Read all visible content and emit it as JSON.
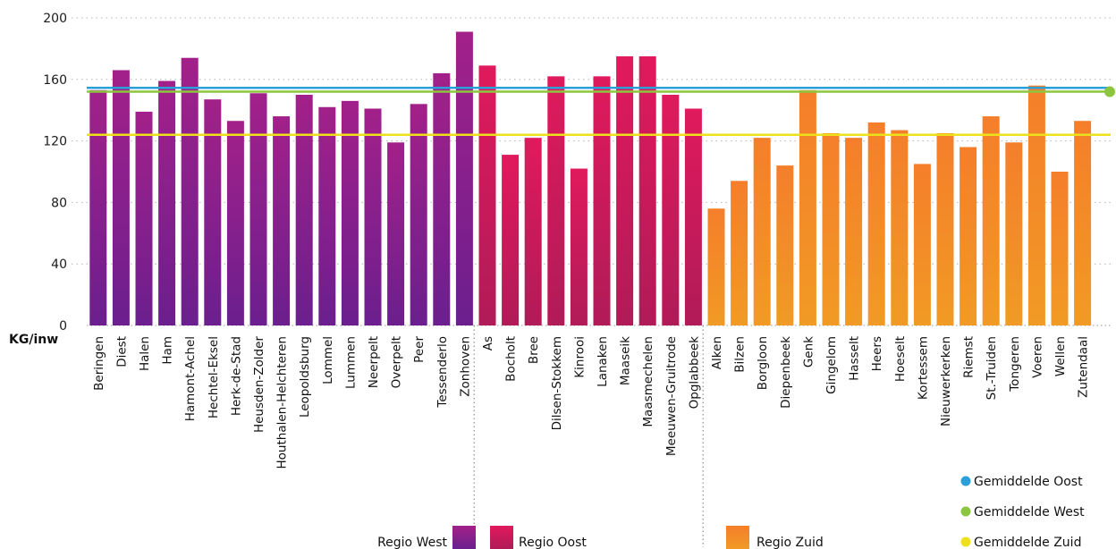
{
  "chart_data": {
    "type": "bar",
    "ylabel": "KG/inw",
    "ylim": [
      0,
      200
    ],
    "yticks": [
      0,
      40,
      80,
      120,
      160,
      200
    ],
    "grid": "dotted horizontal",
    "regions": [
      {
        "name": "Regio West",
        "color_top": "#a3208a",
        "color_bottom": "#6b1f8e",
        "categories": [
          "Beringen",
          "Diest",
          "Halen",
          "Ham",
          "Hamont-Achel",
          "Hechtel-Eksel",
          "Herk-de-Stad",
          "Heusden-Zolder",
          "Houthalen-Helchteren",
          "Leopoldsburg",
          "Lommel",
          "Lummen",
          "Neerpelt",
          "Overpelt",
          "Peer",
          "Tessenderlo",
          "Zonhoven"
        ],
        "values": [
          153,
          166,
          139,
          159,
          174,
          147,
          133,
          151,
          136,
          150,
          142,
          146,
          141,
          119,
          144,
          164,
          191
        ]
      },
      {
        "name": "Regio Oost",
        "color_top": "#e01a5c",
        "color_bottom": "#b01b58",
        "categories": [
          "As",
          "Bocholt",
          "Bree",
          "Dilsen-Stokkem",
          "Kinrooi",
          "Lanaken",
          "Maaseik",
          "Maasmechelen",
          "Meeuwen-Gruitrode",
          "Opglabbeek"
        ],
        "values": [
          169,
          111,
          122,
          162,
          102,
          162,
          175,
          175,
          150,
          141
        ]
      },
      {
        "name": "Regio Zuid",
        "color_top": "#f57e2a",
        "color_bottom": "#f19a25",
        "categories": [
          "Alken",
          "Bilzen",
          "Borgloon",
          "Diepenbeek",
          "Genk",
          "Gingelom",
          "Hasselt",
          "Heers",
          "Hoeselt",
          "Kortessem",
          "Nieuwerkerken",
          "Riemst",
          "St.-Truiden",
          "Tongeren",
          "Voeren",
          "Wellen",
          "Zutendaal"
        ],
        "values": [
          76,
          94,
          122,
          104,
          153,
          125,
          122,
          132,
          127,
          105,
          125,
          116,
          136,
          119,
          156,
          100,
          133
        ]
      }
    ],
    "averages": [
      {
        "name": "Gemiddelde Oost",
        "value": 154.5,
        "color": "#2a9fd8"
      },
      {
        "name": "Gemiddelde West",
        "value": 152,
        "color": "#8cc63f"
      },
      {
        "name": "Gemiddelde Zuid",
        "value": 124,
        "color": "#ece11a"
      }
    ],
    "legend_position": "bottom-right"
  }
}
